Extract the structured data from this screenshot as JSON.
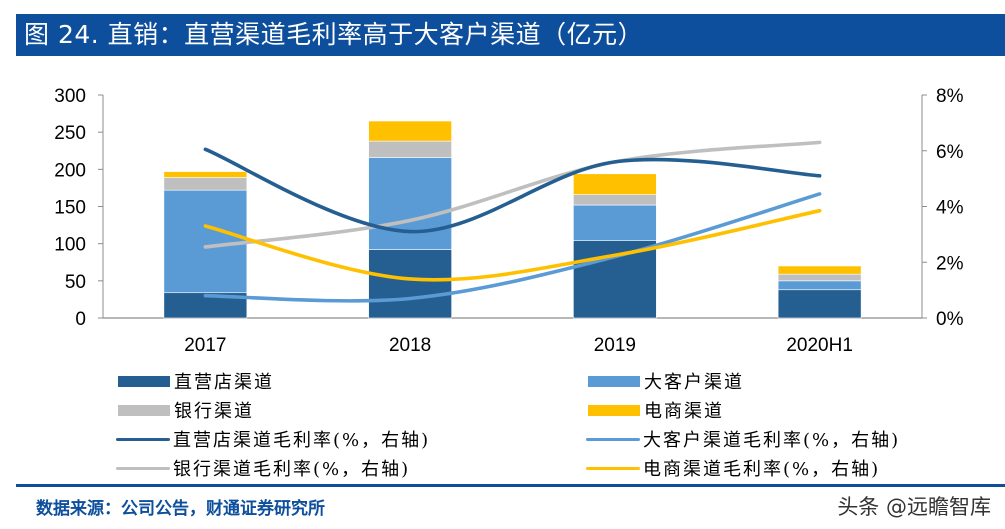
{
  "header": {
    "title": "图 24. 直销：直营渠道毛利率高于大客户渠道（亿元）"
  },
  "chart_data": {
    "type": "bar",
    "stacked": true,
    "title": "图 24. 直销：直营渠道毛利率高于大客户渠道（亿元）",
    "categories": [
      "2017",
      "2018",
      "2019",
      "2020H1"
    ],
    "series": [
      {
        "name": "直营店渠道",
        "kind": "bar",
        "axis": "left",
        "color": "#255e91",
        "values": [
          34,
          92,
          104,
          38
        ]
      },
      {
        "name": "大客户渠道",
        "kind": "bar",
        "axis": "left",
        "color": "#5b9bd5",
        "values": [
          138,
          124,
          48,
          12
        ]
      },
      {
        "name": "银行渠道",
        "kind": "bar",
        "axis": "left",
        "color": "#bfbfbf",
        "values": [
          17,
          22,
          14,
          9
        ]
      },
      {
        "name": "电商渠道",
        "kind": "bar",
        "axis": "left",
        "color": "#ffc000",
        "values": [
          8,
          27,
          28,
          11
        ]
      },
      {
        "name": "直营店渠道毛利率(%，右轴)",
        "kind": "line",
        "axis": "right",
        "color": "#255e91",
        "values": [
          6.05,
          3.1,
          5.6,
          5.1
        ]
      },
      {
        "name": "大客户渠道毛利率(%，右轴)",
        "kind": "line",
        "axis": "right",
        "color": "#5b9bd5",
        "values": [
          0.8,
          0.7,
          2.2,
          4.45
        ]
      },
      {
        "name": "银行渠道毛利率(%，右轴)",
        "kind": "line",
        "axis": "right",
        "color": "#bfbfbf",
        "values": [
          2.55,
          3.5,
          5.6,
          6.3
        ]
      },
      {
        "name": "电商渠道毛利率(%，右轴)",
        "kind": "line",
        "axis": "right",
        "color": "#ffc000",
        "values": [
          3.3,
          1.4,
          2.25,
          3.85
        ]
      }
    ],
    "xlabel": "",
    "ylabel": "",
    "ylim": [
      0,
      300
    ],
    "yticks": [
      "0",
      "50",
      "100",
      "150",
      "200",
      "250",
      "300"
    ],
    "y2lim": [
      0,
      8
    ],
    "y2ticks": [
      "0%",
      "2%",
      "4%",
      "6%",
      "8%"
    ],
    "grid": false,
    "legend_position": "bottom"
  },
  "legend": {
    "items": [
      {
        "label": "直营店渠道",
        "type": "bar",
        "color": "#255e91"
      },
      {
        "label": "大客户渠道",
        "type": "bar",
        "color": "#5b9bd5"
      },
      {
        "label": "银行渠道",
        "type": "bar",
        "color": "#bfbfbf"
      },
      {
        "label": "电商渠道",
        "type": "bar",
        "color": "#ffc000"
      },
      {
        "label": "直营店渠道毛利率(%，右轴)",
        "type": "line",
        "color": "#255e91"
      },
      {
        "label": "大客户渠道毛利率(%，右轴)",
        "type": "line",
        "color": "#5b9bd5"
      },
      {
        "label": "银行渠道毛利率(%，右轴)",
        "type": "line",
        "color": "#bfbfbf"
      },
      {
        "label": "电商渠道毛利率(%，右轴)",
        "type": "line",
        "color": "#ffc000"
      }
    ]
  },
  "footer": {
    "source": "数据来源：公司公告，财通证券研究所",
    "watermark": "头条 @远瞻智库"
  },
  "colors": {
    "brand": "#0d4f9c"
  }
}
